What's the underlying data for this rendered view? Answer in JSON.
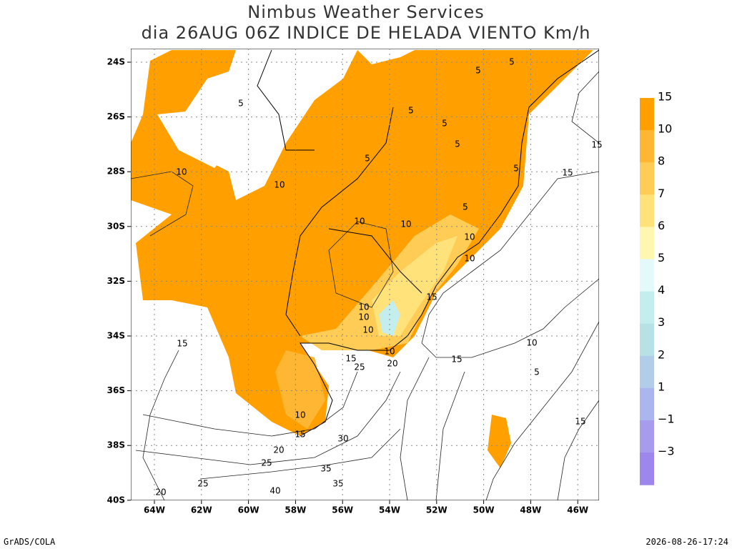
{
  "header": {
    "title": "Nimbus Weather Services",
    "subtitle": "dia 26AUG 06Z INDICE DE HELADA VIENTO Km/h"
  },
  "map": {
    "lat_labels": [
      "24S",
      "26S",
      "28S",
      "30S",
      "32S",
      "34S",
      "36S",
      "38S",
      "40S"
    ],
    "lon_labels": [
      "64W",
      "62W",
      "60W",
      "58W",
      "56W",
      "54W",
      "52W",
      "50W",
      "48W",
      "46W"
    ],
    "contour_labels": [
      "5",
      "5",
      "5",
      "5",
      "5",
      "5",
      "5",
      "5",
      "5",
      "10",
      "10",
      "10",
      "10",
      "10",
      "10",
      "10",
      "10",
      "10",
      "10",
      "10",
      "15",
      "15",
      "15",
      "15",
      "15",
      "15",
      "15",
      "20",
      "20",
      "20",
      "25",
      "25",
      "25",
      "30",
      "35",
      "35",
      "40",
      "5",
      "10",
      "15"
    ]
  },
  "legend": {
    "labels": [
      "15",
      "10",
      "8",
      "7",
      "6",
      "5",
      "4",
      "3",
      "2",
      "1",
      "−1",
      "−3"
    ],
    "colors": [
      "#ffa000",
      "#ffb733",
      "#ffcc55",
      "#ffe27a",
      "#fff7b0",
      "#e4fafa",
      "#c4eeee",
      "#b6e2e6",
      "#b2cdea",
      "#acb6ee",
      "#a79bee",
      "#9d86ec"
    ]
  },
  "footer": {
    "left": "GrADS/COLA",
    "right": "2026-08-26-17:24"
  }
}
